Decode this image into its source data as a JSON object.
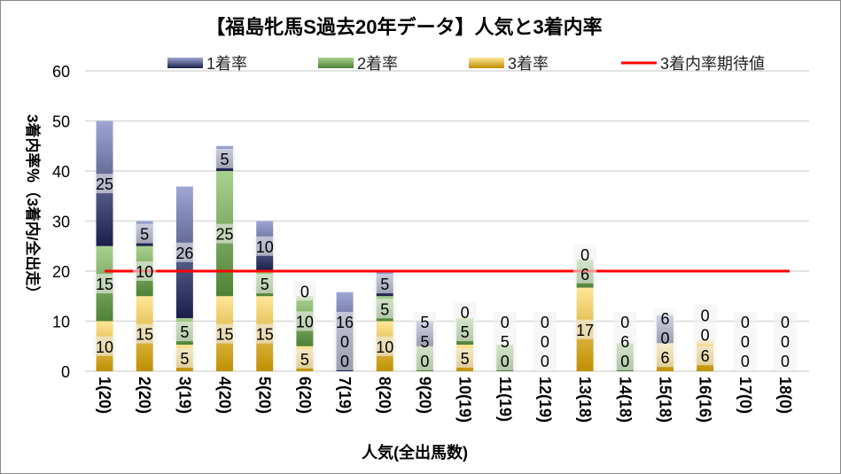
{
  "chart_data": {
    "type": "bar",
    "stacked": true,
    "title": "【福島牝馬S過去20年データ】人気と3着内率",
    "xlabel": "人気(全出馬数)",
    "ylabel": "3着内率％（3着内/全出走）",
    "ylim": [
      0,
      60
    ],
    "yticks": [
      0,
      10,
      20,
      30,
      40,
      50,
      60
    ],
    "grid": true,
    "legend_position": "top",
    "categories": [
      "1(20)",
      "2(20)",
      "3(19)",
      "4(20)",
      "5(20)",
      "6(20)",
      "7(19)",
      "8(20)",
      "9(20)",
      "10(19)",
      "11(19)",
      "12(19)",
      "13(18)",
      "14(18)",
      "15(18)",
      "16(16)",
      "17(0)",
      "18(0)"
    ],
    "series": [
      {
        "name": "3着率",
        "color": "#e8b84a",
        "values": [
          10,
          15,
          5.3,
          15,
          15,
          5,
          0,
          10,
          0,
          5.3,
          0,
          0,
          16.7,
          0,
          5.6,
          6.3,
          0,
          0
        ]
      },
      {
        "name": "2着率",
        "color": "#70a050",
        "values": [
          15,
          10,
          5.3,
          25,
          5,
          10,
          0,
          5,
          5,
          5.3,
          5.3,
          0,
          5.6,
          5.6,
          0,
          0,
          0,
          0
        ]
      },
      {
        "name": "1着率",
        "color": "#5060a8",
        "values": [
          25,
          5,
          26.3,
          5,
          10,
          0,
          15.8,
          5,
          5,
          0,
          0,
          0,
          0,
          0,
          5.6,
          0,
          0,
          0
        ]
      }
    ],
    "reference_line": {
      "name": "3着内率期待値",
      "color": "#ff0000",
      "value": 20
    }
  }
}
